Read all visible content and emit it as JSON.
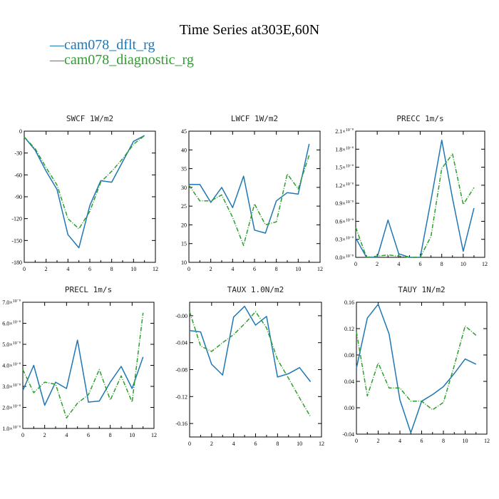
{
  "title": "Time Series at303E,60N",
  "legend": [
    {
      "label": "cam078_dflt_rg",
      "color": "#1f77b4",
      "marker": "—"
    },
    {
      "label": "cam078_diagnostic_rg",
      "color": "#2ca02c",
      "marker": "—"
    }
  ],
  "chart_data": [
    {
      "type": "line",
      "title": "SWCF  1W/m2",
      "x": [
        0,
        1,
        2,
        3,
        4,
        5,
        6,
        7,
        8,
        9,
        10,
        11
      ],
      "xlim": [
        0,
        12
      ],
      "xticks": [
        "0",
        "2",
        "4",
        "6",
        "8",
        "10",
        "12"
      ],
      "ylim": [
        -180,
        0
      ],
      "yticks": [
        "0",
        "-30",
        "-60",
        "-90",
        "-120",
        "-150",
        "-180"
      ],
      "series": [
        {
          "name": "cam078_dflt_rg",
          "values": [
            -8,
            -26,
            -55,
            -80,
            -142,
            -160,
            -102,
            -68,
            -70,
            -42,
            -14,
            -6
          ]
        },
        {
          "name": "cam078_diagnostic_rg",
          "values": [
            -8,
            -24,
            -50,
            -74,
            -120,
            -134,
            -110,
            -70,
            -55,
            -38,
            -18,
            -6
          ]
        }
      ]
    },
    {
      "type": "line",
      "title": "LWCF  1W/m2",
      "x": [
        0,
        1,
        2,
        3,
        4,
        5,
        6,
        7,
        8,
        9,
        10,
        11
      ],
      "xlim": [
        0,
        12
      ],
      "xticks": [
        "0",
        "2",
        "4",
        "6",
        "8",
        "10",
        "12"
      ],
      "ylim": [
        10,
        45
      ],
      "yticks": [
        "10",
        "15",
        "20",
        "25",
        "30",
        "35",
        "40",
        "45"
      ],
      "series": [
        {
          "name": "cam078_dflt_rg",
          "values": [
            30.8,
            30.8,
            26,
            30,
            24.6,
            33,
            18.6,
            17.8,
            26.4,
            28.6,
            28.2,
            41.6
          ]
        },
        {
          "name": "cam078_diagnostic_rg",
          "values": [
            30.6,
            26.4,
            26.4,
            28,
            22,
            14.5,
            25.6,
            20,
            20.8,
            33.6,
            29.6,
            38.6
          ]
        }
      ]
    },
    {
      "type": "line",
      "title": "PRECC  1m/s",
      "x": [
        0,
        1,
        2,
        3,
        4,
        5,
        6,
        7,
        8,
        9,
        10,
        11
      ],
      "xlim": [
        0,
        12
      ],
      "xticks": [
        "0",
        "2",
        "4",
        "6",
        "8",
        "10",
        "12"
      ],
      "ylim": [
        0,
        2.1
      ],
      "yunit": "×10⁻⁸",
      "yticks": [
        "0.0×10⁻⁸",
        "0.3×10⁻⁸",
        "0.6×10⁻⁸",
        "0.9×10⁻⁸",
        "1.2×10⁻⁸",
        "1.5×10⁻⁸",
        "1.8×10⁻⁸",
        "2.1×10⁻⁸"
      ],
      "series": [
        {
          "name": "cam078_dflt_rg",
          "values": [
            0.32,
            0,
            0,
            0.62,
            0.06,
            0,
            0,
            0.95,
            1.95,
            0.98,
            0.1,
            0.82
          ]
        },
        {
          "name": "cam078_diagnostic_rg",
          "values": [
            0.5,
            0,
            0.02,
            0.04,
            0.02,
            0,
            0,
            0.35,
            1.48,
            1.72,
            0.88,
            1.16
          ]
        }
      ]
    },
    {
      "type": "line",
      "title": "PRECL  1m/s",
      "x": [
        0,
        1,
        2,
        3,
        4,
        5,
        6,
        7,
        8,
        9,
        10,
        11
      ],
      "xlim": [
        0,
        12
      ],
      "xticks": [
        "0",
        "2",
        "4",
        "6",
        "8",
        "10",
        "12"
      ],
      "ylim": [
        1.0,
        7.0
      ],
      "yunit": "×10⁻⁸",
      "yticks": [
        "1.0×10⁻⁸",
        "2.0×10⁻⁸",
        "3.0×10⁻⁸",
        "4.0×10⁻⁸",
        "5.0×10⁻⁸",
        "6.0×10⁻⁸",
        "7.0×10⁻⁸"
      ],
      "series": [
        {
          "name": "cam078_dflt_rg",
          "values": [
            2.8,
            4.0,
            2.1,
            3.2,
            2.9,
            5.2,
            2.25,
            2.3,
            3.2,
            3.95,
            2.9,
            4.4
          ]
        },
        {
          "name": "cam078_diagnostic_rg",
          "values": [
            3.8,
            2.7,
            3.2,
            3.1,
            1.5,
            2.2,
            2.6,
            3.8,
            2.35,
            3.5,
            2.25,
            6.5
          ]
        }
      ]
    },
    {
      "type": "line",
      "title": "TAUX  1.0N/m2",
      "x": [
        0,
        1,
        2,
        3,
        4,
        5,
        6,
        7,
        8,
        9,
        10,
        11
      ],
      "xlim": [
        0,
        12
      ],
      "xticks": [
        "0",
        "2",
        "4",
        "6",
        "8",
        "10",
        "12"
      ],
      "ylim": [
        -0.18,
        0.02
      ],
      "yticks": [
        "-0.00",
        "-0.04",
        "-0.08",
        "-0.12",
        "-0.16"
      ],
      "series": [
        {
          "name": "cam078_dflt_rg",
          "values": [
            -0.022,
            -0.024,
            -0.072,
            -0.088,
            -0.002,
            0.014,
            -0.014,
            -0.001,
            -0.091,
            -0.086,
            -0.077,
            -0.098
          ]
        },
        {
          "name": "cam078_diagnostic_rg",
          "values": [
            0.006,
            -0.045,
            -0.053,
            -0.04,
            -0.028,
            -0.012,
            0.006,
            -0.018,
            -0.065,
            -0.093,
            -0.122,
            -0.15
          ]
        }
      ]
    },
    {
      "type": "line",
      "title": "TAUY  1N/m2",
      "x": [
        0,
        1,
        2,
        3,
        4,
        5,
        6,
        7,
        8,
        9,
        10,
        11
      ],
      "xlim": [
        0,
        12
      ],
      "xticks": [
        "0",
        "2",
        "4",
        "6",
        "8",
        "10",
        "12"
      ],
      "ylim": [
        -0.04,
        0.16
      ],
      "yticks": [
        "-0.04",
        "0.00",
        "0.04",
        "0.08",
        "0.12",
        "0.16"
      ],
      "series": [
        {
          "name": "cam078_dflt_rg",
          "values": [
            0.06,
            0.136,
            0.157,
            0.112,
            0.012,
            -0.038,
            0.01,
            0.02,
            0.032,
            0.052,
            0.074,
            0.066
          ]
        },
        {
          "name": "cam078_diagnostic_rg",
          "values": [
            0.115,
            0.018,
            0.068,
            0.03,
            0.03,
            0.01,
            0.01,
            -0.003,
            0.008,
            0.064,
            0.124,
            0.11
          ]
        }
      ]
    }
  ]
}
